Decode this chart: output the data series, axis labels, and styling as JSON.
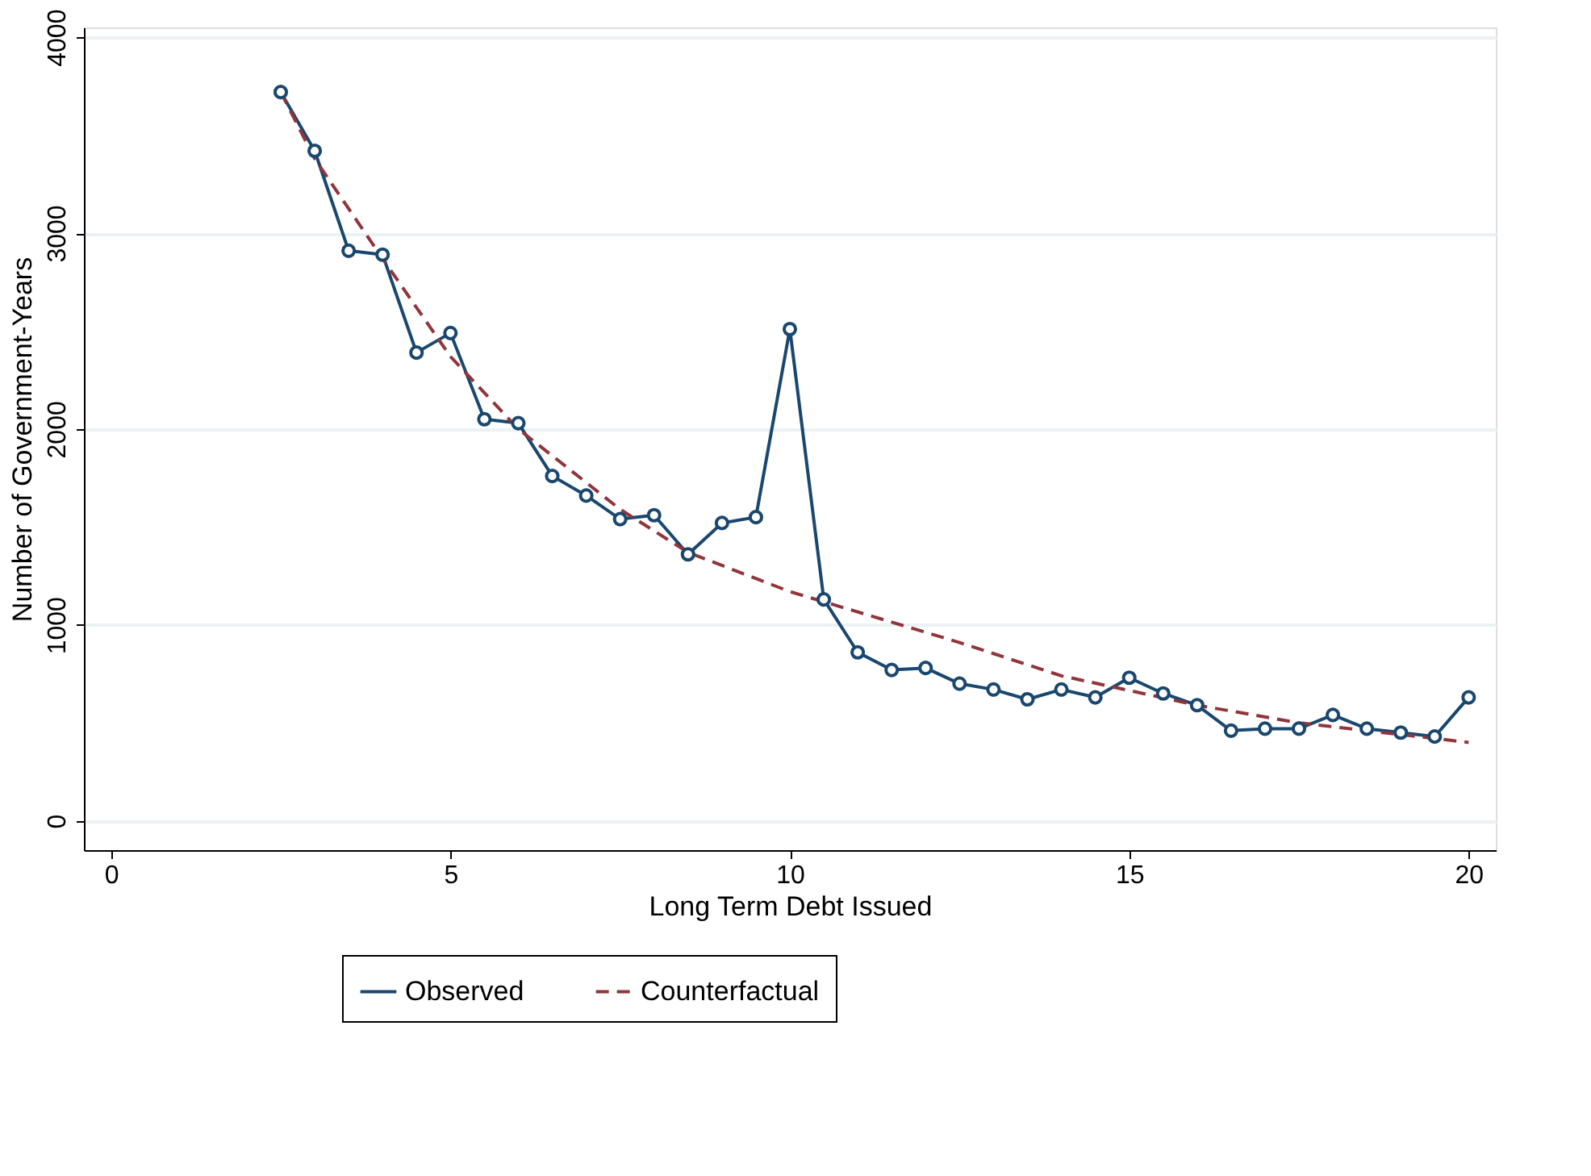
{
  "chart_data": {
    "type": "line",
    "xlabel": "Long Term Debt Issued",
    "ylabel": "Number of Government-Years",
    "xlim": [
      -0.4,
      20.4
    ],
    "xticks": [
      0,
      5,
      10,
      15,
      20
    ],
    "ylim": [
      -150,
      4050
    ],
    "yticks": [
      0,
      1000,
      2000,
      3000,
      4000
    ],
    "grid": "y",
    "legend": "bottom",
    "series": [
      {
        "name": "Observed",
        "color": "#1a476f",
        "marker": "circle",
        "line_style": "solid",
        "x": [
          2.5,
          3,
          3.5,
          4,
          4.5,
          5,
          5.5,
          6,
          6.5,
          7,
          7.5,
          8,
          8.5,
          9,
          9.5,
          10,
          10.5,
          11,
          11.5,
          12,
          12.5,
          13,
          13.5,
          14,
          14.5,
          15,
          15.5,
          16,
          16.5,
          17,
          17.5,
          18,
          18.5,
          19,
          19.5,
          20
        ],
        "values": [
          3720,
          3420,
          2910,
          2890,
          2390,
          2490,
          2050,
          2030,
          1760,
          1660,
          1540,
          1560,
          1360,
          1520,
          1550,
          2510,
          1130,
          860,
          770,
          780,
          700,
          670,
          620,
          670,
          630,
          730,
          650,
          590,
          460,
          470,
          470,
          540,
          470,
          450,
          430,
          630
        ]
      },
      {
        "name": "Counterfactual",
        "color": "#90353b",
        "marker": "none",
        "line_style": "dashed",
        "x": [
          2.5,
          3,
          4,
          5,
          6,
          7.5,
          8.5,
          10,
          12.5,
          14,
          16,
          17.5,
          20
        ],
        "values": [
          3720,
          3380,
          2870,
          2370,
          2000,
          1590,
          1370,
          1170,
          910,
          740,
          590,
          500,
          400
        ]
      }
    ]
  }
}
